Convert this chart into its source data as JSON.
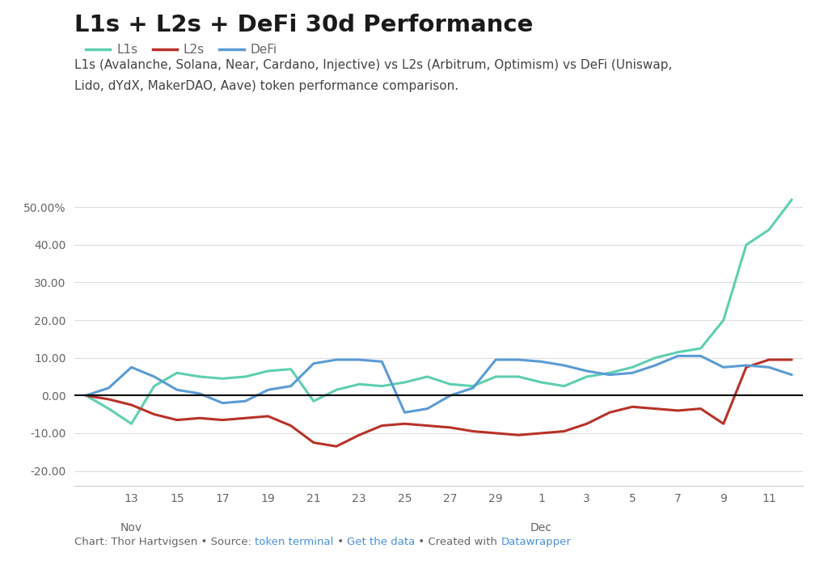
{
  "title": "L1s + L2s + DeFi 30d Performance",
  "subtitle_line1": "L1s (Avalanche, Solana, Near, Cardano, Injective) vs L2s (Arbitrum, Optimism) vs DeFi (Uniswap,",
  "subtitle_line2": "Lido, dYdX, MakerDAO, Aave) token performance comparison.",
  "background_color": "#ffffff",
  "grid_color": "#dddddd",
  "zero_line_color": "#000000",
  "text_color": "#666666",
  "title_color": "#1a1a1a",
  "subtitle_color": "#444444",
  "link_color": "#4a90d9",
  "x_labels": [
    "13",
    "15",
    "17",
    "19",
    "21",
    "23",
    "25",
    "27",
    "29",
    "1",
    "3",
    "5",
    "7",
    "9",
    "11"
  ],
  "ylim": [
    -24,
    57
  ],
  "yticks": [
    -20.0,
    -10.0,
    0.0,
    10.0,
    20.0,
    30.0,
    40.0,
    50.0
  ],
  "ytick_labels": [
    "-20.00",
    "-10.00",
    "0.00",
    "10.00",
    "20.00",
    "30.00",
    "40.00",
    "50.00%"
  ],
  "series": {
    "L1s": {
      "color": "#5ecfb1",
      "linewidth": 2.2,
      "data": [
        0.0,
        -3.5,
        -7.5,
        2.5,
        6.0,
        5.0,
        4.5,
        5.0,
        6.5,
        7.0,
        -1.5,
        1.5,
        3.0,
        2.5,
        3.5,
        5.0,
        3.0,
        2.5,
        5.0,
        5.0,
        3.5,
        2.5,
        5.0,
        6.0,
        7.5,
        10.0,
        11.5,
        12.5,
        20.0,
        40.0,
        44.0,
        52.0
      ]
    },
    "L2s": {
      "color": "#b83228",
      "linewidth": 2.2,
      "data": [
        0.0,
        -1.0,
        -2.5,
        -5.0,
        -6.5,
        -6.0,
        -6.5,
        -6.0,
        -5.5,
        -8.0,
        -12.5,
        -13.5,
        -10.5,
        -8.0,
        -7.5,
        -8.0,
        -8.5,
        -9.5,
        -10.0,
        -10.5,
        -10.0,
        -9.5,
        -7.5,
        -4.5,
        -3.0,
        -3.5,
        -4.0,
        -3.5,
        -7.5,
        7.5,
        9.5,
        9.5
      ]
    },
    "DeFi": {
      "color": "#5b9bd5",
      "linewidth": 2.2,
      "data": [
        0.0,
        2.0,
        7.5,
        5.0,
        1.5,
        0.5,
        -2.0,
        -1.5,
        1.5,
        2.5,
        8.5,
        9.5,
        9.5,
        9.0,
        -4.5,
        -3.5,
        0.0,
        2.0,
        9.5,
        9.5,
        9.0,
        8.0,
        6.5,
        5.5,
        6.0,
        8.0,
        10.5,
        10.5,
        7.5,
        8.0,
        7.5,
        5.5
      ]
    }
  },
  "nov_label_idx": 0,
  "dec_label_idx": 9
}
